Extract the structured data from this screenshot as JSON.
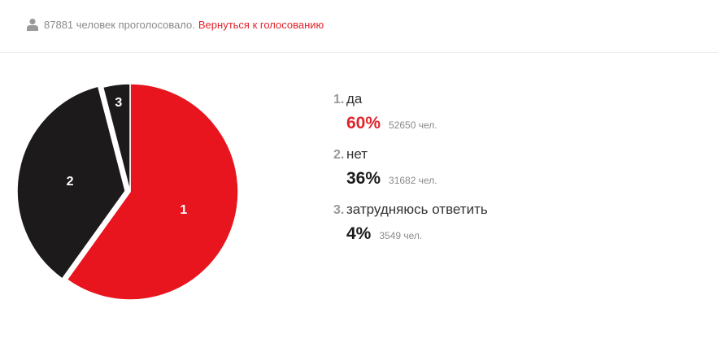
{
  "header": {
    "voted_text": "87881 человек проголосовало.",
    "back_link": "Вернуться к голосованию",
    "icon": "user-icon"
  },
  "colors": {
    "accent": "#e0242b",
    "dark": "#1c1a1a",
    "muted": "#8a8a8a"
  },
  "options": [
    {
      "num": "1.",
      "label": "да",
      "pct": "60%",
      "count": "52650 чел."
    },
    {
      "num": "2.",
      "label": "нет",
      "pct": "36%",
      "count": "31682 чел."
    },
    {
      "num": "3.",
      "label": "затрудняюсь ответить",
      "pct": "4%",
      "count": "3549 чел."
    }
  ],
  "chart_data": {
    "type": "pie",
    "total": 87881,
    "slices": [
      {
        "label": "1",
        "value": 52650,
        "percent": 60,
        "color": "#e8151f",
        "exploded": false
      },
      {
        "label": "2",
        "value": 31682,
        "percent": 36,
        "color": "#1c1a1a",
        "exploded": true
      },
      {
        "label": "3",
        "value": 3549,
        "percent": 4,
        "color": "#1c1a1a",
        "exploded": false
      }
    ]
  }
}
